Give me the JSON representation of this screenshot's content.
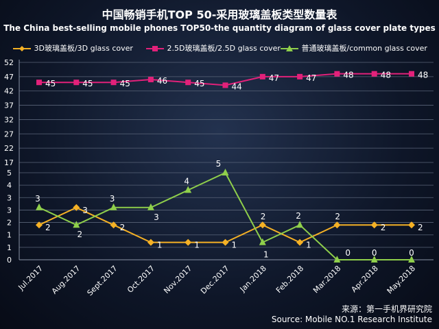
{
  "title": "中国畅销手机TOP 50-采用玻璃盖板类型数量表",
  "subtitle": "The China best-selling mobile phones TOP50-the quantity diagram of glass cover plate types",
  "source": {
    "line1": "来源：第一手机界研究院",
    "line2": "Source: Mobile NO.1 Research Institute"
  },
  "colors": {
    "3d": "#f5b125",
    "25d": "#e2217a",
    "common": "#8fcf4b"
  },
  "chart_data": {
    "type": "line",
    "categories": [
      "Jul.2017",
      "Aug.2017",
      "Sept.2017",
      "Oct.2017",
      "Nov.2017",
      "Dec.2017",
      "Jan.2018",
      "Feb.2018",
      "Mar.2018",
      "Apr.2018",
      "May.2018"
    ],
    "y_ticks_upper": [
      "52",
      "47",
      "42",
      "37",
      "32",
      "27",
      "22",
      "17"
    ],
    "y_ticks_lower": [
      "5",
      "4",
      "3",
      "3",
      "2",
      "1",
      "1",
      "0"
    ],
    "series": [
      {
        "key": "3d",
        "name": "3D玻璃盖板/3D glass cover",
        "values": [
          2,
          3,
          2,
          1,
          1,
          1,
          2,
          1,
          2,
          2,
          2
        ],
        "labels": [
          "2",
          "3",
          "2",
          "1",
          "1",
          "1",
          "2",
          "1",
          "2",
          "2",
          "2"
        ]
      },
      {
        "key": "25d",
        "name": "2.5D玻璃盖板/2.5D glass cover",
        "values": [
          45,
          45,
          45,
          46,
          45,
          44,
          47,
          47,
          48,
          48,
          48
        ],
        "labels": [
          "45",
          "45",
          "45",
          "46",
          "45",
          "44",
          "47",
          "47",
          "48",
          "48",
          "48"
        ]
      },
      {
        "key": "common",
        "name": "普通玻璃盖板/common glass cover",
        "values": [
          3,
          2,
          3,
          3,
          4,
          5,
          1,
          2,
          0,
          0,
          0
        ],
        "labels": [
          "3",
          "2",
          "3",
          "3",
          "4",
          "5",
          "1",
          "2",
          "0",
          "0",
          "0"
        ]
      }
    ]
  }
}
